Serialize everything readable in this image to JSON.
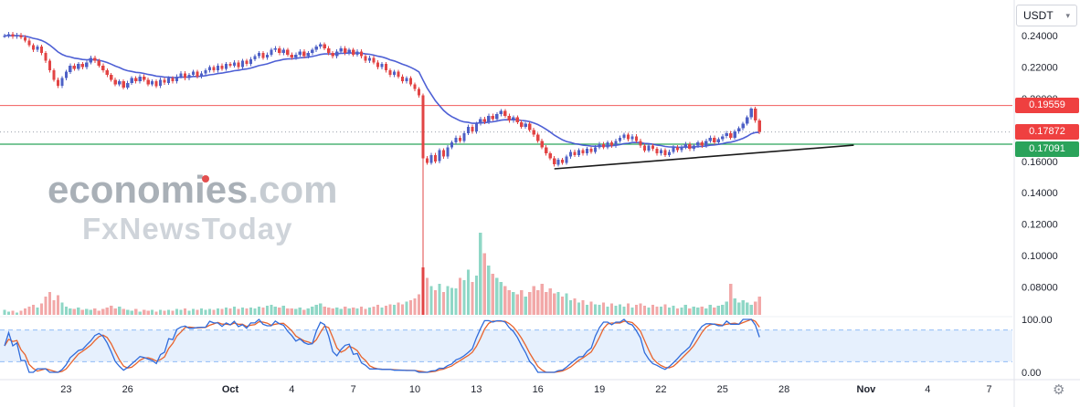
{
  "symbol_selector": {
    "value": "USDT"
  },
  "watermark": {
    "brand": "economies",
    "suffix": ".com",
    "subbrand": "FxNewsToday"
  },
  "icons": {
    "gear": "⚙",
    "chevron_down": "▾"
  },
  "chart_data": {
    "type": "candlestick",
    "quote_currency": "USDT",
    "ylim": [
      0.0622,
      0.2465
    ],
    "candles_per_day": 5,
    "default_wick": 0.0013,
    "price_ticks": [
      {
        "label": "0.24000",
        "value": 0.24
      },
      {
        "label": "0.22000",
        "value": 0.22
      },
      {
        "label": "0.20000",
        "value": 0.2
      },
      {
        "label": "0.16000",
        "value": 0.16
      },
      {
        "label": "0.14000",
        "value": 0.14
      },
      {
        "label": "0.12000",
        "value": 0.12
      },
      {
        "label": "0.10000",
        "value": 0.1
      },
      {
        "label": "0.08000",
        "value": 0.08
      }
    ],
    "indicator_ticks": [
      {
        "label": "100.00",
        "value": 100
      },
      {
        "label": "0.00",
        "value": 0
      }
    ],
    "time_labels": [
      {
        "text": "23",
        "day": 3
      },
      {
        "text": "26",
        "day": 6
      },
      {
        "text": "Oct",
        "day": 11,
        "major": true
      },
      {
        "text": "4",
        "day": 14
      },
      {
        "text": "7",
        "day": 17
      },
      {
        "text": "10",
        "day": 20
      },
      {
        "text": "13",
        "day": 23
      },
      {
        "text": "16",
        "day": 26
      },
      {
        "text": "19",
        "day": 29
      },
      {
        "text": "22",
        "day": 32
      },
      {
        "text": "25",
        "day": 35
      },
      {
        "text": "28",
        "day": 38
      },
      {
        "text": "Nov",
        "day": 42,
        "major": true
      },
      {
        "text": "4",
        "day": 45
      },
      {
        "text": "7",
        "day": 48
      }
    ],
    "levels": {
      "resistance": {
        "price": 0.19559,
        "label": "0.19559",
        "color": "#ef4040"
      },
      "last": {
        "price": 0.17872,
        "label": "0.17872",
        "color": "#ef4040",
        "line_color": "#9ba1ac",
        "line_style": "dotted"
      },
      "support": {
        "price": 0.17091,
        "label": "0.17091",
        "color": "#2aa35a"
      }
    },
    "trendline": {
      "color": "#1a1a1a",
      "points": [
        {
          "day": 26.8,
          "price": 0.1552
        },
        {
          "day": 41.4,
          "price": 0.1703
        }
      ]
    },
    "ma": {
      "type": "EMA",
      "period": 20,
      "color": "#3b4fd0"
    },
    "stochastic": {
      "k_period": 14,
      "k_smooth": 3,
      "d_smooth": 3,
      "k_color": "#2f6bdb",
      "d_color": "#e8632c",
      "band": [
        20,
        80
      ],
      "range": [
        0,
        100
      ],
      "band_color": "#2f80ed"
    },
    "colors": {
      "up": "#4e60c6",
      "down": "#e24444",
      "vol_up": "#8fd7c6",
      "vol_down": "#f2a8a8",
      "background": "#ffffff",
      "axis_text": "#1e222d",
      "separator": "#e0e3eb"
    },
    "special_candles": [
      {
        "index": 102,
        "low": 0.084,
        "vol_color": "#e24444"
      },
      {
        "index": 182,
        "high": 0.1945
      }
    ],
    "closes": [
      0.24,
      0.241,
      0.2395,
      0.2405,
      0.239,
      0.237,
      0.234,
      0.231,
      0.233,
      0.229,
      0.224,
      0.218,
      0.212,
      0.208,
      0.213,
      0.217,
      0.221,
      0.219,
      0.222,
      0.22,
      0.223,
      0.226,
      0.224,
      0.221,
      0.218,
      0.215,
      0.212,
      0.209,
      0.211,
      0.207,
      0.21,
      0.213,
      0.211,
      0.214,
      0.212,
      0.209,
      0.211,
      0.208,
      0.212,
      0.21,
      0.213,
      0.211,
      0.214,
      0.216,
      0.213,
      0.215,
      0.217,
      0.214,
      0.216,
      0.218,
      0.22,
      0.218,
      0.221,
      0.219,
      0.222,
      0.221,
      0.223,
      0.22,
      0.224,
      0.222,
      0.225,
      0.227,
      0.229,
      0.226,
      0.228,
      0.231,
      0.232,
      0.229,
      0.231,
      0.228,
      0.226,
      0.228,
      0.23,
      0.227,
      0.229,
      0.231,
      0.233,
      0.2345,
      0.232,
      0.229,
      0.227,
      0.23,
      0.232,
      0.229,
      0.231,
      0.228,
      0.23,
      0.227,
      0.224,
      0.226,
      0.223,
      0.22,
      0.222,
      0.218,
      0.215,
      0.217,
      0.214,
      0.211,
      0.213,
      0.209,
      0.206,
      0.202,
      0.162,
      0.159,
      0.164,
      0.16,
      0.167,
      0.163,
      0.169,
      0.172,
      0.175,
      0.173,
      0.178,
      0.182,
      0.179,
      0.184,
      0.187,
      0.185,
      0.189,
      0.187,
      0.19,
      0.192,
      0.189,
      0.186,
      0.188,
      0.185,
      0.182,
      0.184,
      0.18,
      0.177,
      0.173,
      0.169,
      0.165,
      0.162,
      0.158,
      0.161,
      0.159,
      0.163,
      0.166,
      0.164,
      0.167,
      0.165,
      0.168,
      0.166,
      0.169,
      0.171,
      0.169,
      0.172,
      0.17,
      0.173,
      0.175,
      0.177,
      0.174,
      0.176,
      0.173,
      0.17,
      0.167,
      0.17,
      0.168,
      0.165,
      0.167,
      0.164,
      0.166,
      0.169,
      0.167,
      0.169,
      0.171,
      0.168,
      0.17,
      0.172,
      0.17,
      0.173,
      0.175,
      0.172,
      0.174,
      0.176,
      0.178,
      0.175,
      0.179,
      0.181,
      0.184,
      0.188,
      0.1935,
      0.186,
      0.17872
    ],
    "volumes": [
      6,
      4,
      5,
      3,
      5,
      8,
      10,
      12,
      9,
      14,
      22,
      28,
      18,
      24,
      15,
      10,
      8,
      7,
      9,
      6,
      7,
      6,
      8,
      5,
      7,
      9,
      11,
      8,
      10,
      7,
      6,
      5,
      7,
      4,
      6,
      5,
      6,
      4,
      6,
      5,
      6,
      5,
      7,
      6,
      8,
      5,
      7,
      6,
      8,
      6,
      7,
      6,
      8,
      7,
      9,
      8,
      10,
      7,
      9,
      8,
      9,
      8,
      10,
      9,
      11,
      12,
      10,
      9,
      11,
      8,
      8,
      7,
      9,
      6,
      8,
      10,
      12,
      14,
      10,
      9,
      8,
      9,
      7,
      10,
      8,
      9,
      8,
      10,
      7,
      9,
      10,
      12,
      9,
      11,
      13,
      12,
      15,
      13,
      16,
      18,
      20,
      25,
      58,
      45,
      35,
      30,
      38,
      28,
      35,
      33,
      32,
      45,
      42,
      55,
      40,
      48,
      100,
      75,
      60,
      50,
      45,
      40,
      35,
      30,
      28,
      25,
      30,
      22,
      28,
      35,
      30,
      38,
      28,
      32,
      26,
      28,
      22,
      26,
      18,
      20,
      15,
      18,
      12,
      16,
      13,
      12,
      15,
      10,
      14,
      11,
      13,
      10,
      14,
      9,
      12,
      14,
      11,
      9,
      12,
      10,
      10,
      13,
      9,
      11,
      8,
      9,
      12,
      8,
      10,
      9,
      10,
      8,
      12,
      9,
      11,
      12,
      16,
      38,
      20,
      15,
      18,
      15,
      12,
      16,
      22
    ]
  }
}
